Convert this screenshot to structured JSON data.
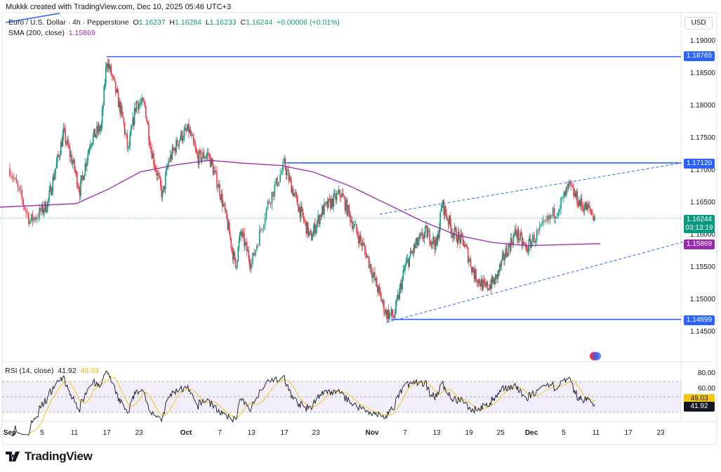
{
  "credit": "Mukkk created with TradingView.com, Dec 10, 2025 05:46 UTC+3",
  "symbol": {
    "name": "Euro / U.S. Dollar · 4h · Pepperstone",
    "o_label": "O",
    "o": "1.16237",
    "h_label": "H",
    "h": "1.16284",
    "l_label": "L",
    "l": "1.16233",
    "c_label": "C",
    "c": "1.16244",
    "change": "+0.00006 (+0.01%)"
  },
  "sma": {
    "label": "SMA (200, close)",
    "value": "1.15869"
  },
  "rsi": {
    "label": "RSI (14, close)",
    "value": "41.92",
    "ma_value": "49.03",
    "axis": [
      "80.00",
      "60.00"
    ]
  },
  "currency": "USD",
  "price_axis": [
    "1.19000",
    "1.18500",
    "1.18000",
    "1.17500",
    "1.17000",
    "1.16500",
    "1.16000",
    "1.15500",
    "1.15000",
    "1.14500"
  ],
  "tags": {
    "res1": "1.18765",
    "res2": "1.17120",
    "last": "1.16244",
    "countdown": "03:13:19",
    "sma": "1.15869",
    "sup": "1.14699"
  },
  "time_axis": [
    "Sep",
    "5",
    "11",
    "17",
    "23",
    "Oct",
    "7",
    "13",
    "17",
    "23",
    "Nov",
    "7",
    "13",
    "19",
    "25",
    "Dec",
    "5",
    "11",
    "17",
    "23"
  ],
  "colors": {
    "up": "#089981",
    "down": "#f23645",
    "line": "#2962ff",
    "sma": "#9c27b0",
    "rsi": "#131722",
    "rsi_ma": "#f5c518"
  },
  "brand": "TradingView",
  "chart_data": {
    "type": "candlestick",
    "timeframe": "4h",
    "price_path": [
      [
        0,
        1.1703
      ],
      [
        2.5,
        1.1622
      ],
      [
        5,
        1.1649
      ],
      [
        8,
        1.1758
      ],
      [
        10,
        1.1703
      ],
      [
        11,
        1.167
      ],
      [
        13,
        1.1747
      ],
      [
        15,
        1.1768
      ],
      [
        16,
        1.1872
      ],
      [
        17,
        1.1845
      ],
      [
        19,
        1.1779
      ],
      [
        20,
        1.173
      ],
      [
        21.5,
        1.1806
      ],
      [
        23,
        1.18
      ],
      [
        24,
        1.1736
      ],
      [
        26,
        1.166
      ],
      [
        27,
        1.1714
      ],
      [
        29,
        1.1752
      ],
      [
        30.5,
        1.1763
      ],
      [
        32,
        1.172
      ],
      [
        34,
        1.1725
      ],
      [
        36,
        1.167
      ],
      [
        37.5,
        1.1616
      ],
      [
        39,
        1.1551
      ],
      [
        40,
        1.1605
      ],
      [
        42,
        1.1556
      ],
      [
        44,
        1.1649
      ],
      [
        46,
        1.1709
      ],
      [
        48,
        1.166
      ],
      [
        51,
        1.1595
      ],
      [
        53,
        1.1638
      ],
      [
        56,
        1.1665
      ],
      [
        58,
        1.1616
      ],
      [
        60,
        1.1573
      ],
      [
        61.5,
        1.153
      ],
      [
        63.5,
        1.148
      ],
      [
        65,
        1.1475
      ],
      [
        67,
        1.1551
      ],
      [
        69,
        1.1584
      ],
      [
        71,
        1.1605
      ],
      [
        73,
        1.1584
      ],
      [
        74,
        1.1649
      ],
      [
        76,
        1.1605
      ],
      [
        78,
        1.1589
      ],
      [
        80,
        1.154
      ],
      [
        82,
        1.1518
      ],
      [
        84,
        1.153
      ],
      [
        86,
        1.1573
      ],
      [
        88,
        1.1605
      ],
      [
        90,
        1.1578
      ],
      [
        92,
        1.1605
      ],
      [
        94,
        1.1638
      ],
      [
        96,
        1.1676
      ],
      [
        98,
        1.1649
      ],
      [
        100,
        1.1638
      ],
      [
        101,
        1.1624
      ]
    ],
    "sma200": [
      [
        -2,
        1.16435
      ],
      [
        10.3,
        1.1649
      ],
      [
        16.2,
        1.1671
      ],
      [
        22.2,
        1.1698
      ],
      [
        28.2,
        1.1709
      ],
      [
        34.2,
        1.1716
      ],
      [
        39.8,
        1.1712
      ],
      [
        45.6,
        1.1708
      ],
      [
        51.5,
        1.1698
      ],
      [
        57.5,
        1.1676
      ],
      [
        63.6,
        1.1649
      ],
      [
        70.2,
        1.1622
      ],
      [
        76.8,
        1.16
      ],
      [
        83.4,
        1.1589
      ],
      [
        89.9,
        1.1584
      ],
      [
        101.8,
        1.1587
      ]
    ],
    "hlines": [
      {
        "price": 1.18765,
        "from_day": 16
      },
      {
        "price": 1.1712,
        "from_day": 46
      },
      {
        "price": 1.14699,
        "from_day": 64.5
      }
    ],
    "channel": {
      "upper": [
        [
          62.4,
          1.16326
        ],
        [
          117,
          1.1712
        ]
      ],
      "lower": [
        [
          63.6,
          1.1465
        ],
        [
          118.4,
          1.15924
        ]
      ]
    },
    "ylim": [
      1.142,
      1.1935
    ],
    "rsi_levels": [
      70,
      50,
      30
    ]
  }
}
